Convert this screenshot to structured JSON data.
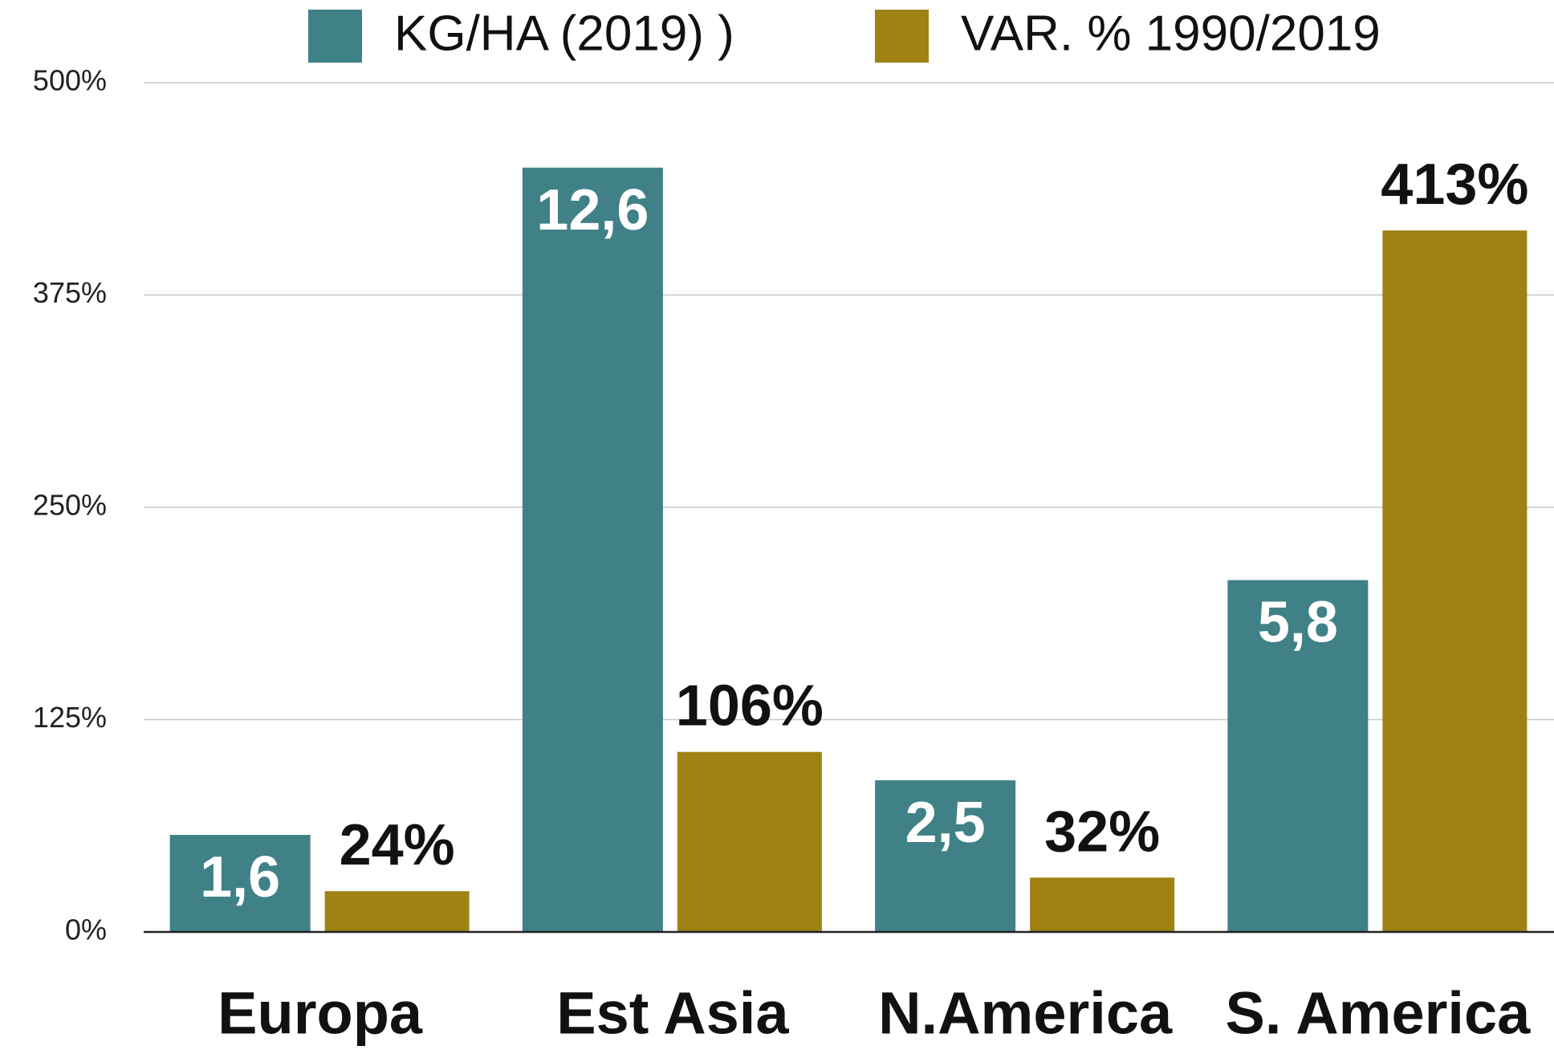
{
  "chart_data": {
    "type": "bar",
    "categories": [
      "Europa",
      "Est Asia",
      "N.America",
      "S. America"
    ],
    "series": [
      {
        "name": "KG/HA (2019) )",
        "color": "#3f8186",
        "axis": "y2",
        "values": [
          1.6,
          12.6,
          2.5,
          5.8
        ],
        "value_labels": [
          "1,6",
          "12,6",
          "2,5",
          "5,8"
        ]
      },
      {
        "name": "VAR. % 1990/2019",
        "color": "#a08114",
        "values": [
          24,
          106,
          32,
          413
        ],
        "value_labels": [
          "24%",
          "106%",
          "32%",
          "413%"
        ]
      }
    ],
    "ylim": [
      0,
      500
    ],
    "yticks": [
      {
        "value": 0,
        "label": "0%"
      },
      {
        "value": 125,
        "label": "125%"
      },
      {
        "value": 250,
        "label": "250%"
      },
      {
        "value": 375,
        "label": "375%"
      },
      {
        "value": 500,
        "label": "500%"
      }
    ],
    "y2lim": [
      0,
      14
    ],
    "grid": true,
    "legend": "top"
  }
}
